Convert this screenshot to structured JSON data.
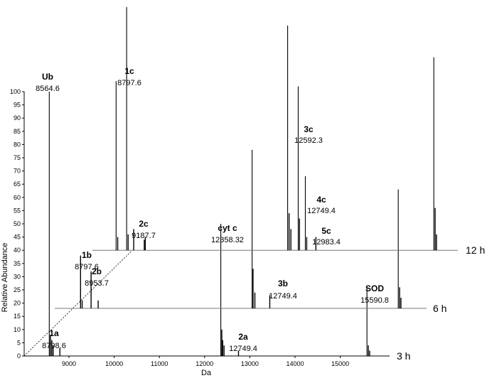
{
  "chart_data": {
    "type": "line",
    "title": "",
    "xlabel": "Da",
    "ylabel": "Relative Abundance",
    "xlim": [
      8200,
      15900
    ],
    "ylim": [
      0,
      100
    ],
    "x_ticks": [
      9000,
      10000,
      11000,
      12000,
      13000,
      14000,
      15000
    ],
    "y_ticks": [
      0,
      5,
      10,
      15,
      20,
      25,
      30,
      35,
      40,
      45,
      50,
      55,
      60,
      65,
      70,
      75,
      80,
      85,
      90,
      95,
      100
    ],
    "grid": false,
    "legend": "none",
    "series": [
      {
        "name": "3 h",
        "baseline": 0,
        "peaks": [
          [
            8564.6,
            100
          ],
          [
            8590,
            8
          ],
          [
            8620,
            6
          ],
          [
            8650,
            4
          ],
          [
            8798.6,
            3
          ],
          [
            12358.32,
            50
          ],
          [
            12380,
            10
          ],
          [
            12400,
            6
          ],
          [
            12430,
            4
          ],
          [
            12749.4,
            2
          ],
          [
            15590.8,
            26
          ],
          [
            15620,
            4
          ],
          [
            15650,
            2
          ]
        ]
      },
      {
        "name": "6 h",
        "baseline": 18,
        "peaks": [
          [
            8564.6,
            20
          ],
          [
            8600,
            3
          ],
          [
            8797.6,
            14
          ],
          [
            8953.7,
            3
          ],
          [
            12358.32,
            60
          ],
          [
            12380,
            15
          ],
          [
            12420,
            6
          ],
          [
            12749.4,
            5
          ],
          [
            15590.8,
            45
          ],
          [
            15620,
            8
          ],
          [
            15650,
            4
          ]
        ]
      },
      {
        "name": "12 h",
        "baseline": 40,
        "peaks": [
          [
            8564.6,
            64
          ],
          [
            8600,
            5
          ],
          [
            8797.6,
            92
          ],
          [
            8830,
            6
          ],
          [
            8953.7,
            8
          ],
          [
            9187.7,
            4
          ],
          [
            9210,
            5
          ],
          [
            12358.32,
            85
          ],
          [
            12390,
            14
          ],
          [
            12430,
            8
          ],
          [
            12592.3,
            62
          ],
          [
            12620,
            12
          ],
          [
            12749.4,
            28
          ],
          [
            12780,
            5
          ],
          [
            12983.4,
            5
          ],
          [
            15590.8,
            73
          ],
          [
            15620,
            16
          ],
          [
            15650,
            6
          ]
        ]
      }
    ],
    "annotations": [
      {
        "label": "Ub",
        "mass": "8564.6",
        "series": "3 h",
        "x": 8564.6
      },
      {
        "label": "cyt c",
        "mass": "12358.32",
        "series": "3 h",
        "x": 12358.32
      },
      {
        "label": "SOD",
        "mass": "15590.8",
        "series": "3 h",
        "x": 15590.8
      },
      {
        "label": "1a",
        "mass": "8798.6",
        "series": "3 h",
        "x": 8798.6
      },
      {
        "label": "2a",
        "mass": "12749.4",
        "series": "3 h",
        "x": 12749.4
      },
      {
        "label": "1b",
        "mass": "8797.6",
        "series": "6 h",
        "x": 8797.6
      },
      {
        "label": "2b",
        "mass": "8953.7",
        "series": "6 h",
        "x": 8953.7
      },
      {
        "label": "3b",
        "mass": "12749.4",
        "series": "6 h",
        "x": 12749.4
      },
      {
        "label": "1c",
        "mass": "8797.6",
        "series": "12 h",
        "x": 8797.6
      },
      {
        "label": "2c",
        "mass": "9187.7",
        "series": "12 h",
        "x": 9187.7
      },
      {
        "label": "3c",
        "mass": "12592.3",
        "series": "12 h",
        "x": 12592.3
      },
      {
        "label": "4c",
        "mass": "12749.4",
        "series": "12 h",
        "x": 12749.4
      },
      {
        "label": "5c",
        "mass": "12983.4",
        "series": "12 h",
        "x": 12983.4
      }
    ]
  }
}
